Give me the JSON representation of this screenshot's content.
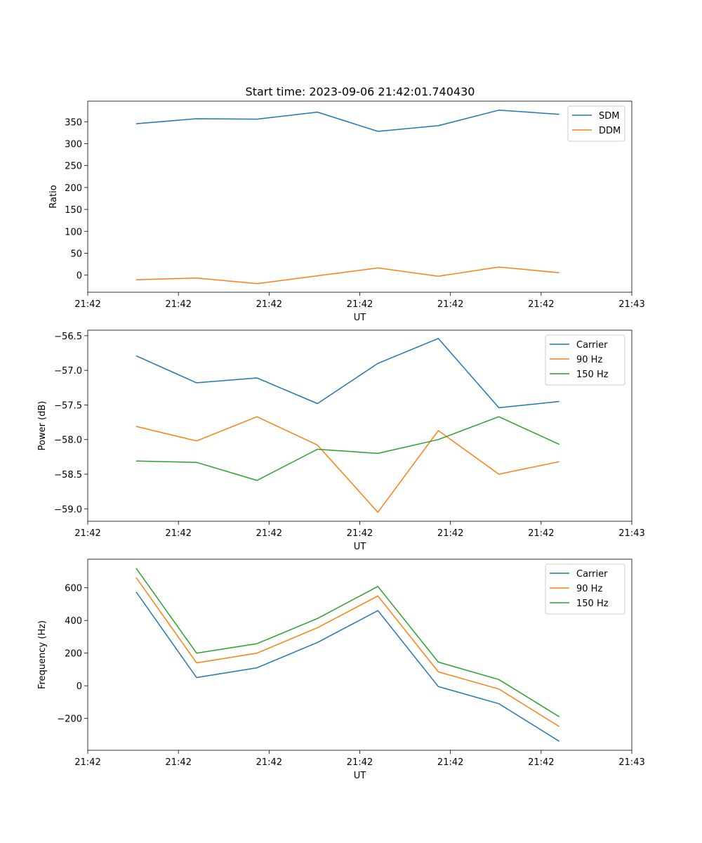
{
  "chart_data": [
    {
      "type": "line",
      "title": "Start time: 2023-09-06 21:42:01.740430",
      "xlabel": "UT",
      "ylabel": "Ratio",
      "x": [
        1,
        2,
        3,
        4,
        5,
        6,
        7,
        8
      ],
      "xlim": [
        0.2,
        9.2
      ],
      "xticks": [
        0.2,
        1.7,
        3.2,
        4.7,
        6.2,
        7.7,
        9.2
      ],
      "xtick_labels": [
        "21:42",
        "21:42",
        "21:42",
        "21:42",
        "21:42",
        "21:42",
        "21:43"
      ],
      "ylim": [
        -39,
        397
      ],
      "yticks": [
        0,
        50,
        100,
        150,
        200,
        250,
        300,
        350
      ],
      "ytick_labels": [
        "0",
        "50",
        "100",
        "150",
        "200",
        "250",
        "300",
        "350"
      ],
      "legend_position": "top-right",
      "series": [
        {
          "name": "SDM",
          "color": "#1f77b4",
          "values": [
            345.5,
            357,
            356,
            372,
            328,
            341,
            376.5,
            367
          ]
        },
        {
          "name": "DDM",
          "color": "#ff7f0e",
          "values": [
            -10.5,
            -6.5,
            -19.5,
            -1.5,
            16.5,
            -2.5,
            18.5,
            5.5
          ]
        }
      ]
    },
    {
      "type": "line",
      "title": "",
      "xlabel": "UT",
      "ylabel": "Power (dB)",
      "x": [
        1,
        2,
        3,
        4,
        5,
        6,
        7,
        8
      ],
      "xlim": [
        0.2,
        9.2
      ],
      "xticks": [
        0.2,
        1.7,
        3.2,
        4.7,
        6.2,
        7.7,
        9.2
      ],
      "xtick_labels": [
        "21:42",
        "21:42",
        "21:42",
        "21:42",
        "21:42",
        "21:42",
        "21:43"
      ],
      "ylim": [
        -59.18,
        -56.42
      ],
      "yticks": [
        -59.0,
        -58.5,
        -58.0,
        -57.5,
        -57.0,
        -56.5
      ],
      "ytick_labels": [
        "−59.0",
        "−58.5",
        "−58.0",
        "−57.5",
        "−57.0",
        "−56.5"
      ],
      "legend_position": "top-right",
      "series": [
        {
          "name": "Carrier",
          "color": "#1f77b4",
          "values": [
            -56.79,
            -57.18,
            -57.11,
            -57.48,
            -56.9,
            -56.54,
            -57.54,
            -57.45
          ]
        },
        {
          "name": "90 Hz",
          "color": "#ff7f0e",
          "values": [
            -57.81,
            -58.02,
            -57.67,
            -58.08,
            -59.05,
            -57.87,
            -58.5,
            -58.32
          ]
        },
        {
          "name": "150 Hz",
          "color": "#2ca02c",
          "values": [
            -58.31,
            -58.33,
            -58.59,
            -58.14,
            -58.2,
            -58.0,
            -57.67,
            -58.07
          ]
        }
      ]
    },
    {
      "type": "line",
      "title": "",
      "xlabel": "UT",
      "ylabel": "Frequency (Hz)",
      "x": [
        1,
        2,
        3,
        4,
        5,
        6,
        7,
        8
      ],
      "xlim": [
        0.2,
        9.2
      ],
      "xticks": [
        0.2,
        1.7,
        3.2,
        4.7,
        6.2,
        7.7,
        9.2
      ],
      "xtick_labels": [
        "21:42",
        "21:42",
        "21:42",
        "21:42",
        "21:42",
        "21:42",
        "21:43"
      ],
      "ylim": [
        -395,
        775
      ],
      "yticks": [
        -200,
        0,
        200,
        400,
        600
      ],
      "ytick_labels": [
        "−200",
        "0",
        "200",
        "400",
        "600"
      ],
      "legend_position": "top-right",
      "series": [
        {
          "name": "Carrier",
          "color": "#1f77b4",
          "values": [
            575,
            50,
            110,
            265,
            460,
            -5,
            -110,
            -340
          ]
        },
        {
          "name": "90 Hz",
          "color": "#ff7f0e",
          "values": [
            663,
            140,
            200,
            355,
            550,
            85,
            -20,
            -250
          ]
        },
        {
          "name": "150 Hz",
          "color": "#2ca02c",
          "values": [
            720,
            200,
            258,
            412,
            608,
            145,
            38,
            -190
          ]
        }
      ]
    }
  ]
}
